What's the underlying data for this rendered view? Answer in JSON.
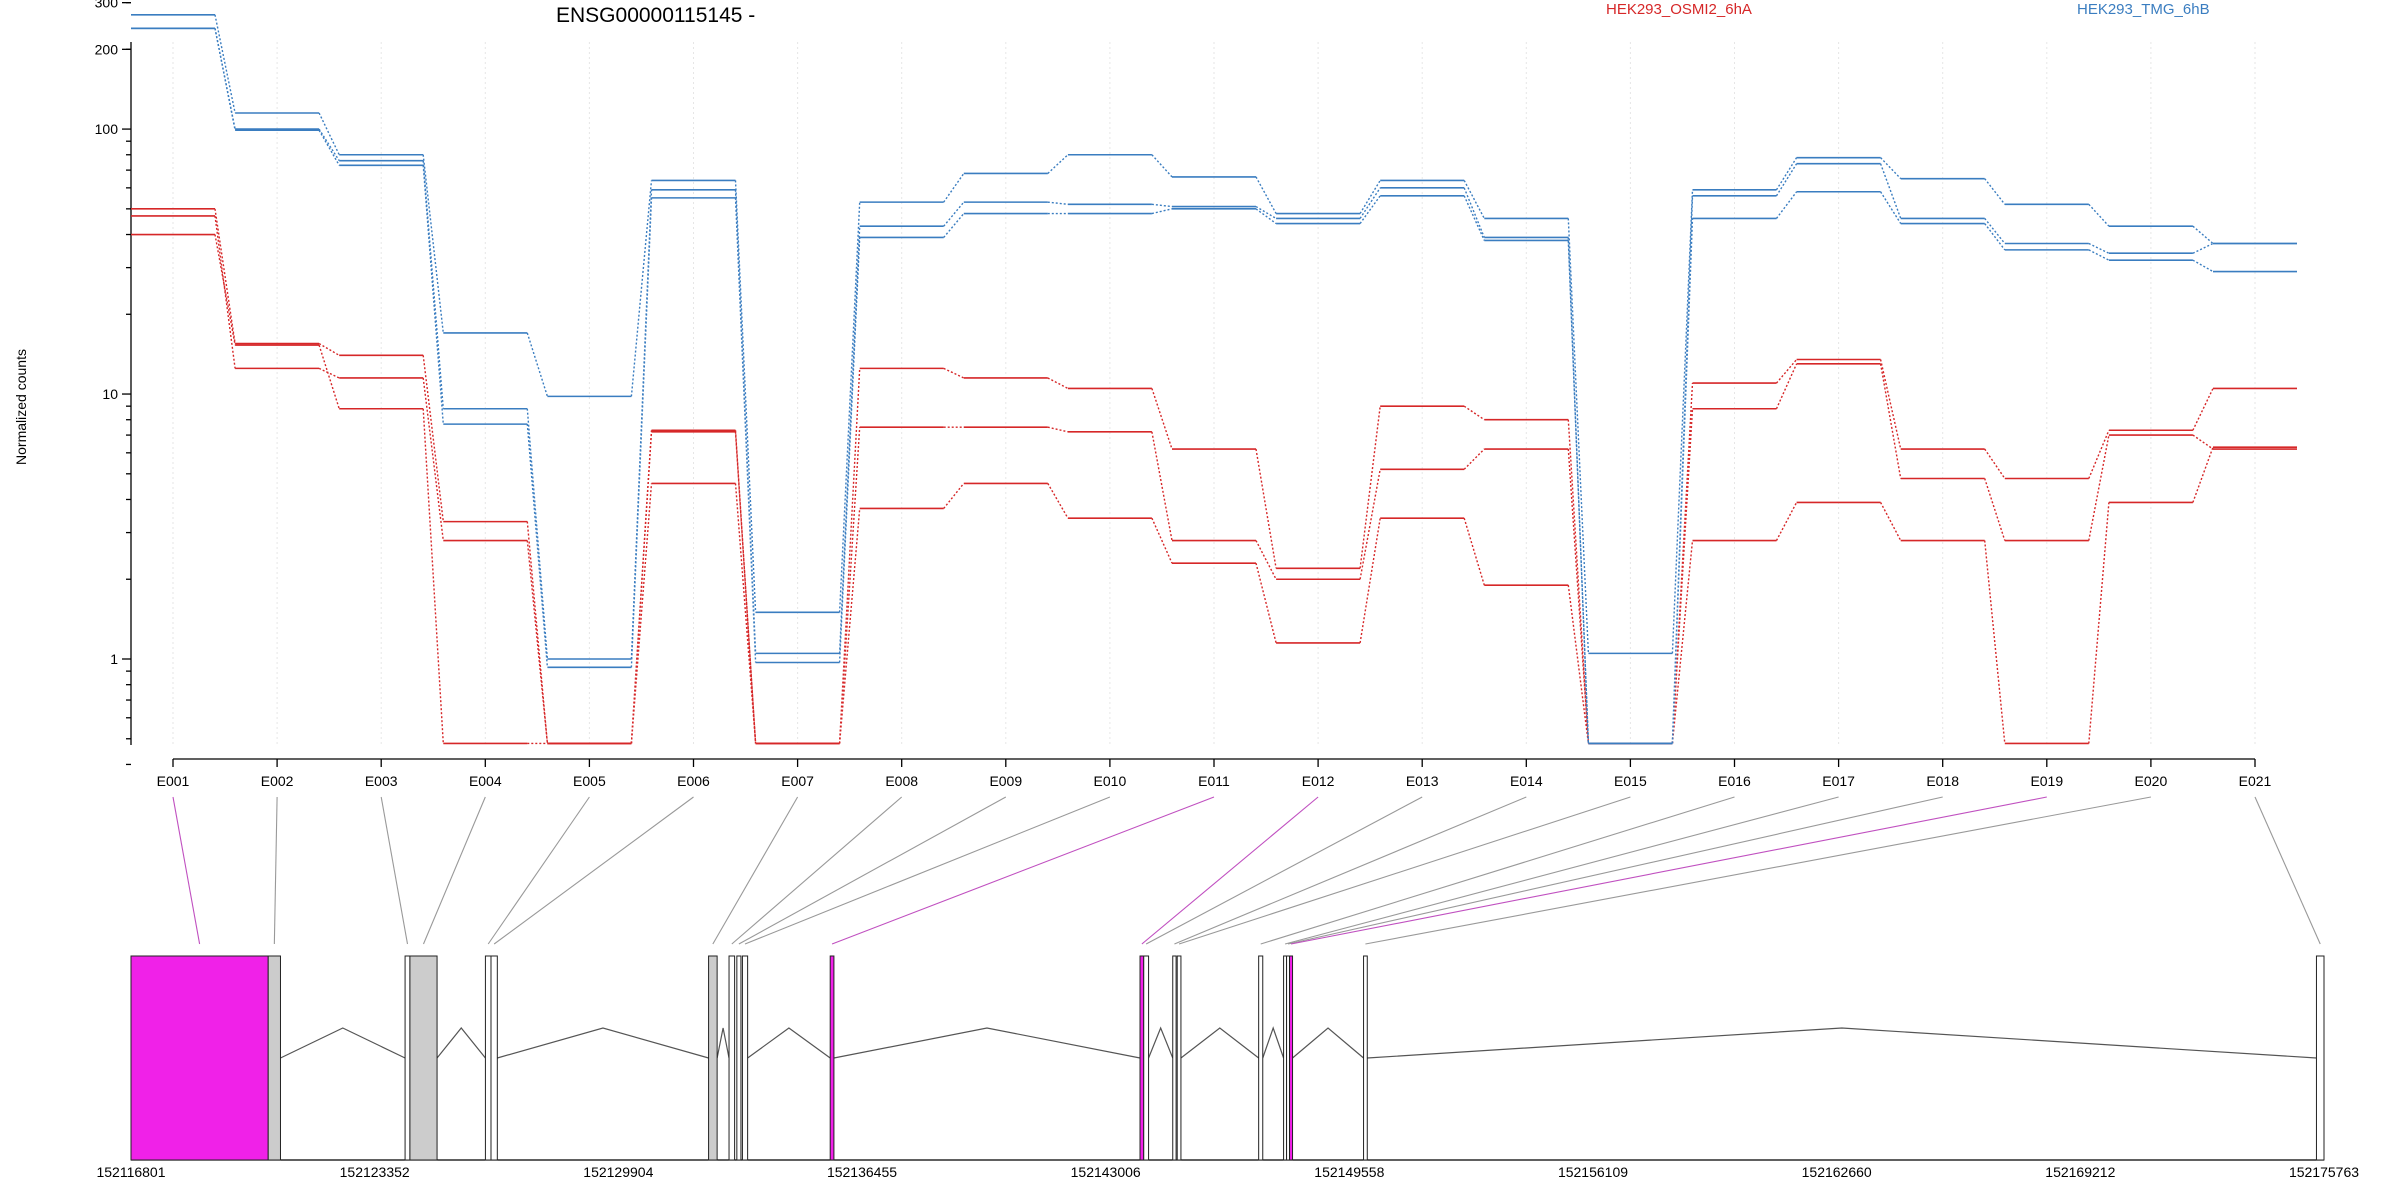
{
  "title": "ENSG00000115145 -",
  "legend": [
    {
      "name": "HEK293_OSMI2_6hA",
      "color": "#d62728"
    },
    {
      "name": "HEK293_TMG_6hB",
      "color": "#3a7dc0"
    }
  ],
  "chart_data": {
    "type": "line",
    "title": "ENSG00000115145 -",
    "ylabel": "Normalized counts",
    "xlabel": "",
    "y_scale": "log",
    "ylim": [
      0.4,
      350
    ],
    "y_ticks": [
      {
        "value": 1,
        "label": "1"
      },
      {
        "value": 10,
        "label": "10"
      },
      {
        "value": 100,
        "label": "100"
      },
      {
        "value": 200,
        "label": "200"
      },
      {
        "value": 300,
        "label": "300"
      }
    ],
    "categories": [
      "E001",
      "E002",
      "E003",
      "E004",
      "E005",
      "E006",
      "E007",
      "E008",
      "E009",
      "E010",
      "E011",
      "E012",
      "E013",
      "E014",
      "E015",
      "E016",
      "E017",
      "E018",
      "E019",
      "E020",
      "E021"
    ],
    "grid": "vertical dotted",
    "legend_placement": "top",
    "series": [
      {
        "name": "HEK293_OSMI2_6hA",
        "color": "#d62728",
        "values": [
          50,
          15.5,
          14,
          3.3,
          0.48,
          7.3,
          0.48,
          12.5,
          11.5,
          10.5,
          6.2,
          2.2,
          9,
          8,
          0.48,
          11,
          13.5,
          6.2,
          4.8,
          7.3,
          10.5
        ]
      },
      {
        "name": "HEK293_OSMI2_6hA",
        "color": "#d62728",
        "values": [
          47,
          12.5,
          11.5,
          2.8,
          0.48,
          7.2,
          0.48,
          7.5,
          7.5,
          7.2,
          2.8,
          2,
          5.2,
          6.2,
          0.48,
          8.8,
          13,
          4.8,
          2.8,
          7,
          6.2
        ]
      },
      {
        "name": "HEK293_OSMI2_6hA",
        "color": "#d62728",
        "values": [
          40,
          15.3,
          8.8,
          0.48,
          0.48,
          4.6,
          0.48,
          3.7,
          4.6,
          3.4,
          2.3,
          1.15,
          3.4,
          1.9,
          0.48,
          2.8,
          3.9,
          2.8,
          0.48,
          3.9,
          6.3
        ]
      },
      {
        "name": "HEK293_TMG_6hB",
        "color": "#3a7dc0",
        "values": [
          270,
          115,
          80,
          17,
          9.8,
          64,
          1.5,
          53,
          68,
          80,
          66,
          48,
          64,
          46,
          1.05,
          59,
          78,
          65,
          52,
          43,
          37
        ]
      },
      {
        "name": "HEK293_TMG_6hB",
        "color": "#3a7dc0",
        "values": [
          240,
          100,
          76,
          8.8,
          1,
          59,
          1.05,
          43,
          53,
          52,
          51,
          46,
          60,
          39,
          0.48,
          56,
          74,
          46,
          37,
          34,
          37
        ]
      },
      {
        "name": "HEK293_TMG_6hB",
        "color": "#3a7dc0",
        "values": [
          240,
          99,
          73,
          7.7,
          0.93,
          55,
          0.97,
          39,
          48,
          48,
          50,
          44,
          56,
          38,
          0.48,
          46,
          58,
          44,
          35,
          32,
          29
        ]
      }
    ],
    "gene_model": {
      "coordinate_labels": [
        "152116801",
        "152123352",
        "152129904",
        "152136455",
        "152143006",
        "152149558",
        "152156109",
        "152162660",
        "152169212",
        "152175763"
      ],
      "range": [
        152116801,
        152175763
      ],
      "highlight_color": "#f021e8",
      "exons": [
        {
          "id": "E001",
          "start": 152116801,
          "end": 152120490,
          "highlight": true
        },
        {
          "id": "E002",
          "start": 152120490,
          "end": 152120820,
          "highlight": false
        },
        {
          "id": "E003",
          "start": 152124170,
          "end": 152124300,
          "highlight": false
        },
        {
          "id": "E004",
          "start": 152124300,
          "end": 152125030,
          "highlight": false
        },
        {
          "id": "E005",
          "start": 152126330,
          "end": 152126480,
          "highlight": false
        },
        {
          "id": "E006",
          "start": 152126480,
          "end": 152126650,
          "highlight": false
        },
        {
          "id": "E007",
          "start": 152132330,
          "end": 152132560,
          "highlight": false
        },
        {
          "id": "E008",
          "start": 152132880,
          "end": 152133030,
          "highlight": false
        },
        {
          "id": "E009",
          "start": 152133090,
          "end": 152133200,
          "highlight": false
        },
        {
          "id": "E010",
          "start": 152133240,
          "end": 152133380,
          "highlight": false
        },
        {
          "id": "E011",
          "start": 152135600,
          "end": 152135700,
          "highlight": true
        },
        {
          "id": "E012",
          "start": 152143930,
          "end": 152144030,
          "highlight": true
        },
        {
          "id": "E013",
          "start": 152144030,
          "end": 152144160,
          "highlight": false
        },
        {
          "id": "E014",
          "start": 152144810,
          "end": 152144900,
          "highlight": false
        },
        {
          "id": "E015",
          "start": 152144930,
          "end": 152145030,
          "highlight": false
        },
        {
          "id": "E016",
          "start": 152147120,
          "end": 152147230,
          "highlight": false
        },
        {
          "id": "E017",
          "start": 152147790,
          "end": 152147870,
          "highlight": false
        },
        {
          "id": "E018",
          "start": 152147870,
          "end": 152147950,
          "highlight": false
        },
        {
          "id": "E019",
          "start": 152147950,
          "end": 152148030,
          "highlight": true
        },
        {
          "id": "E020",
          "start": 152149940,
          "end": 152150040,
          "highlight": false
        },
        {
          "id": "E021",
          "start": 152175560,
          "end": 152175763,
          "highlight": false
        }
      ]
    }
  }
}
